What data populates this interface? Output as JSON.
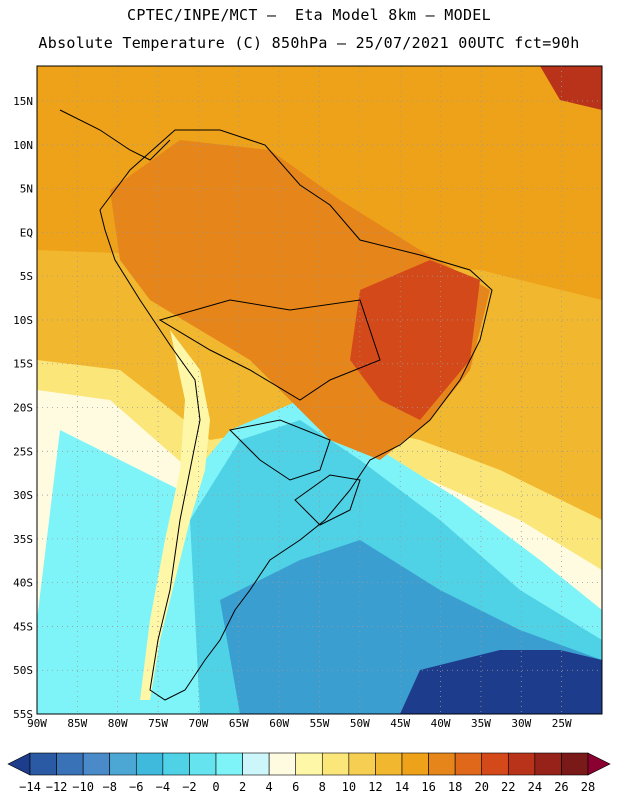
{
  "header": {
    "line1": "CPTEC/INPE/MCT –  Eta Model 8km – MODEL",
    "line2": "Absolute Temperature (C) 850hPa – 25/07/2021 00UTC fct=90h"
  },
  "map": {
    "lon_ticks": [
      "90W",
      "85W",
      "80W",
      "75W",
      "70W",
      "65W",
      "60W",
      "55W",
      "50W",
      "45W",
      "40W",
      "35W",
      "30W",
      "25W"
    ],
    "lat_ticks": [
      "15N",
      "10N",
      "5N",
      "EQ",
      "5S",
      "10S",
      "15S",
      "20S",
      "25S",
      "30S",
      "35S",
      "40S",
      "45S",
      "50S",
      "55S"
    ],
    "lon_range": [
      -90,
      -20
    ],
    "lat_range": [
      -55,
      19
    ]
  },
  "colorbar": {
    "labels": [
      "-14",
      "-12",
      "-10",
      "-8",
      "-6",
      "-4",
      "-2",
      "0",
      "2",
      "4",
      "6",
      "8",
      "10",
      "12",
      "14",
      "16",
      "18",
      "20",
      "22",
      "24",
      "26",
      "28"
    ],
    "colors": [
      "#1e3c8c",
      "#2b5aa5",
      "#3a72b8",
      "#4a8ac8",
      "#4ca7d4",
      "#3fbadc",
      "#4fd2e6",
      "#65e4ef",
      "#7ff4f8",
      "#cdf6fb",
      "#fffbe0",
      "#fff7a8",
      "#fbe67a",
      "#f6cf52",
      "#f1b72e",
      "#eea219",
      "#e6861a",
      "#e0681a",
      "#d4491a",
      "#b8331a",
      "#962219",
      "#7a1a18",
      "#8a0030"
    ]
  },
  "colors": {
    "land_border": "#000000",
    "grid": "#9a9a9a"
  }
}
